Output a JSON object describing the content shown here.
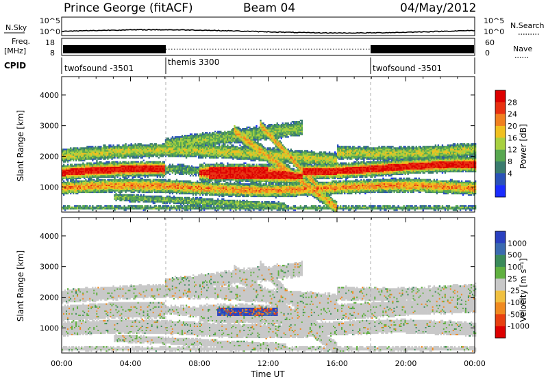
{
  "header": {
    "station": "Prince George (fitACF)",
    "beam": "Beam 04",
    "date": "04/May/2012"
  },
  "summary_panel": {
    "nsky_label": "N.Sky",
    "nsky_max": "10^5",
    "nsky_min": "10^0",
    "nsearch_label": "N.Search",
    "nsearch_max": "10^5",
    "nsearch_min": "10^0",
    "freq_label": "Freq.",
    "freq_unit": "[MHz]",
    "freq_max": "18",
    "freq_min": "8",
    "nave_label": "Nave",
    "nave_max": "60",
    "nave_min": "0",
    "cpid_label": "CPID"
  },
  "cpid_segments": [
    {
      "name": "twofsound -3501",
      "start_h": 0,
      "end_h": 6
    },
    {
      "name": "themis 3300",
      "start_h": 6,
      "end_h": 18
    },
    {
      "name": "twofsound -3501",
      "start_h": 18,
      "end_h": 24
    }
  ],
  "chart_data": [
    {
      "type": "heatmap",
      "parameter": "Power",
      "ylabel": "Slant Range [km]",
      "xlabel": "Time UT",
      "xlim_h": [
        0,
        24
      ],
      "ylim": [
        180,
        4600
      ],
      "yticks": [
        1000,
        2000,
        3000,
        4000
      ],
      "colorbar_label": "Power [dB]",
      "colorbar_ticks": [
        "4",
        "8",
        "12",
        "16",
        "20",
        "24",
        "28"
      ],
      "colorbar_colors": [
        "#1a2cff",
        "#2a52b8",
        "#3a7c6e",
        "#58a850",
        "#a8d040",
        "#f0c020",
        "#f08020",
        "#e83010",
        "#dd0000"
      ]
    },
    {
      "type": "heatmap",
      "parameter": "Velocity",
      "ylabel": "Slant Range [km]",
      "xlabel": "Time UT",
      "xlim_h": [
        0,
        24
      ],
      "ylim": [
        180,
        4600
      ],
      "yticks": [
        1000,
        2000,
        3000,
        4000
      ],
      "colorbar_label": "Velocity [m s⁻¹]",
      "colorbar_ticks": [
        "1000",
        "500",
        "100",
        "25",
        "-25",
        "-100",
        "-500",
        "-1000"
      ],
      "colorbar_colors": [
        "#2a40c0",
        "#3a6ab0",
        "#3a8a5a",
        "#60b040",
        "#c8c8c8",
        "#f0c040",
        "#f08a20",
        "#e84010",
        "#dd0000"
      ]
    }
  ],
  "x_axis": {
    "ticks": [
      "00:00",
      "04:00",
      "08:00",
      "12:00",
      "16:00",
      "20:00",
      "00:00"
    ],
    "tick_hours": [
      0,
      4,
      8,
      12,
      16,
      20,
      24
    ],
    "label": "Time UT"
  }
}
